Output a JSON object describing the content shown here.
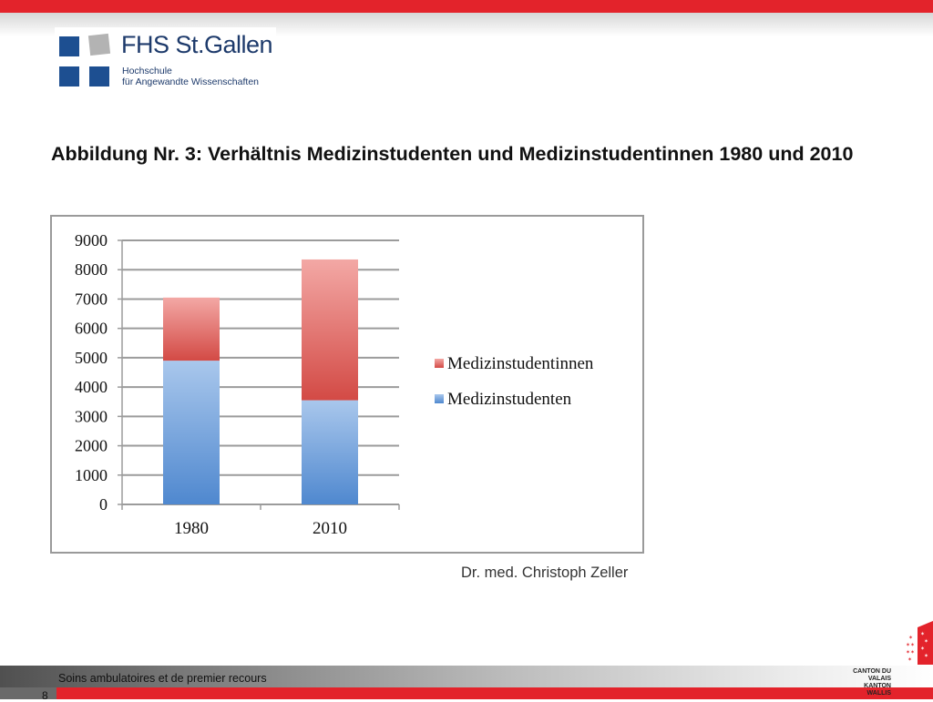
{
  "header": {
    "logo": {
      "title": "FHS St.Gallen",
      "subtitle_line1": "Hochschule",
      "subtitle_line2": "für Angewandte Wissenschaften"
    },
    "accent_color": "#e3232b"
  },
  "slide": {
    "heading": "Abbildung Nr. 3: Verhältnis Medizinstudenten und Medizinstudentinnen 1980 und 2010",
    "attribution": "Dr. med. Christoph Zeller"
  },
  "chart_data": {
    "type": "bar",
    "stacked": true,
    "categories": [
      "1980",
      "2010"
    ],
    "series": [
      {
        "name": "Medizinstudenten",
        "values": [
          4900,
          3550
        ],
        "color": "#5b93d3"
      },
      {
        "name": "Medizinstudentinnen",
        "values": [
          2150,
          4800
        ],
        "color": "#d9534f"
      }
    ],
    "yticks": [
      "0",
      "1000",
      "2000",
      "3000",
      "4000",
      "5000",
      "6000",
      "7000",
      "8000",
      "9000"
    ],
    "ylim": [
      0,
      9000
    ],
    "grid": true,
    "legend_position": "right",
    "legend_order": [
      "Medizinstudentinnen",
      "Medizinstudenten"
    ]
  },
  "footer": {
    "label": "Soins ambulatoires et de premier recours",
    "page_number": "8",
    "canton_line1": "CANTON DU VALAIS",
    "canton_line2": "KANTON WALLIS"
  }
}
